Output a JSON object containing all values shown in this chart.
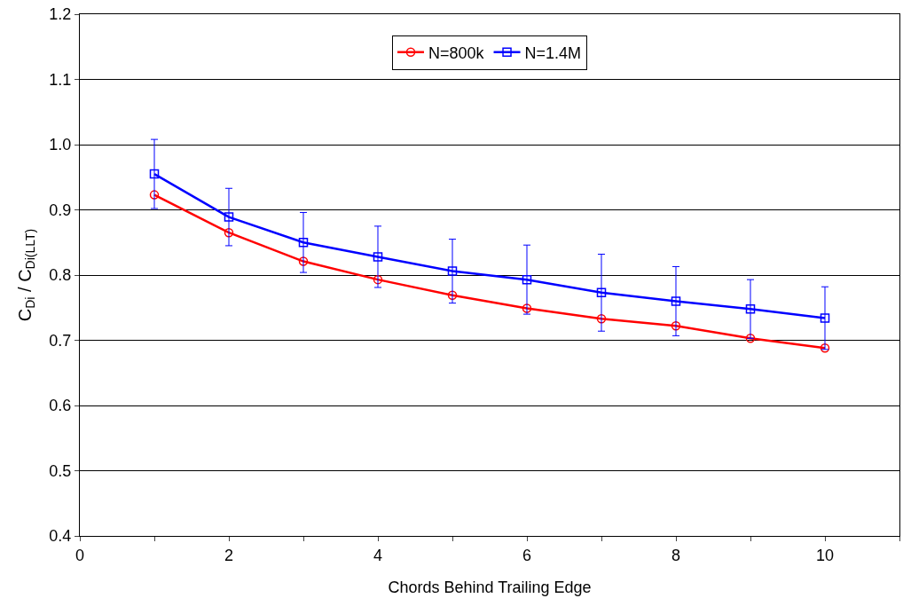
{
  "chart_data": {
    "type": "line",
    "xlabel": "Chords Behind Trailing Edge",
    "ylabel": "C$_{Di}$ / C$_{Di(LLT)}$",
    "x": [
      1,
      2,
      3,
      4,
      5,
      6,
      7,
      8,
      9,
      10
    ],
    "series": [
      {
        "name": "N=800k",
        "color": "#ff0000",
        "marker": "circle",
        "values": [
          0.923,
          0.865,
          0.821,
          0.793,
          0.769,
          0.749,
          0.733,
          0.722,
          0.703,
          0.688
        ]
      },
      {
        "name": "N=1.4M",
        "color": "#0000ff",
        "marker": "square",
        "values": [
          0.955,
          0.889,
          0.85,
          0.828,
          0.806,
          0.793,
          0.773,
          0.76,
          0.748,
          0.734
        ],
        "errors": [
          0.053,
          0.044,
          0.046,
          0.047,
          0.049,
          0.053,
          0.059,
          0.053,
          0.045,
          0.048
        ]
      }
    ],
    "xlim": [
      0,
      11
    ],
    "xticks": [
      0,
      {
        "value": 1,
        "label": null
      },
      2,
      {
        "value": 3,
        "label": null
      },
      4,
      {
        "value": 5,
        "label": null
      },
      6,
      {
        "value": 7,
        "label": null
      },
      8,
      {
        "value": 9,
        "label": null
      },
      10,
      {
        "value": 11,
        "label": null
      }
    ],
    "ylim": [
      0.4,
      1.2
    ],
    "yticks": [
      {
        "value": 0.4,
        "label": "0.4"
      },
      {
        "value": 0.5,
        "label": "0.5"
      },
      {
        "value": 0.6,
        "label": "0.6"
      },
      {
        "value": 0.7,
        "label": "0.7"
      },
      {
        "value": 0.8,
        "label": "0.8"
      },
      {
        "value": 0.9,
        "label": "0.9"
      },
      {
        "value": 1.0,
        "label": "1.0"
      },
      {
        "value": 1.1,
        "label": "1.1"
      },
      {
        "value": 1.2,
        "label": "1.2"
      }
    ],
    "grid": "y",
    "legend": "top",
    "line_style": "solid"
  }
}
